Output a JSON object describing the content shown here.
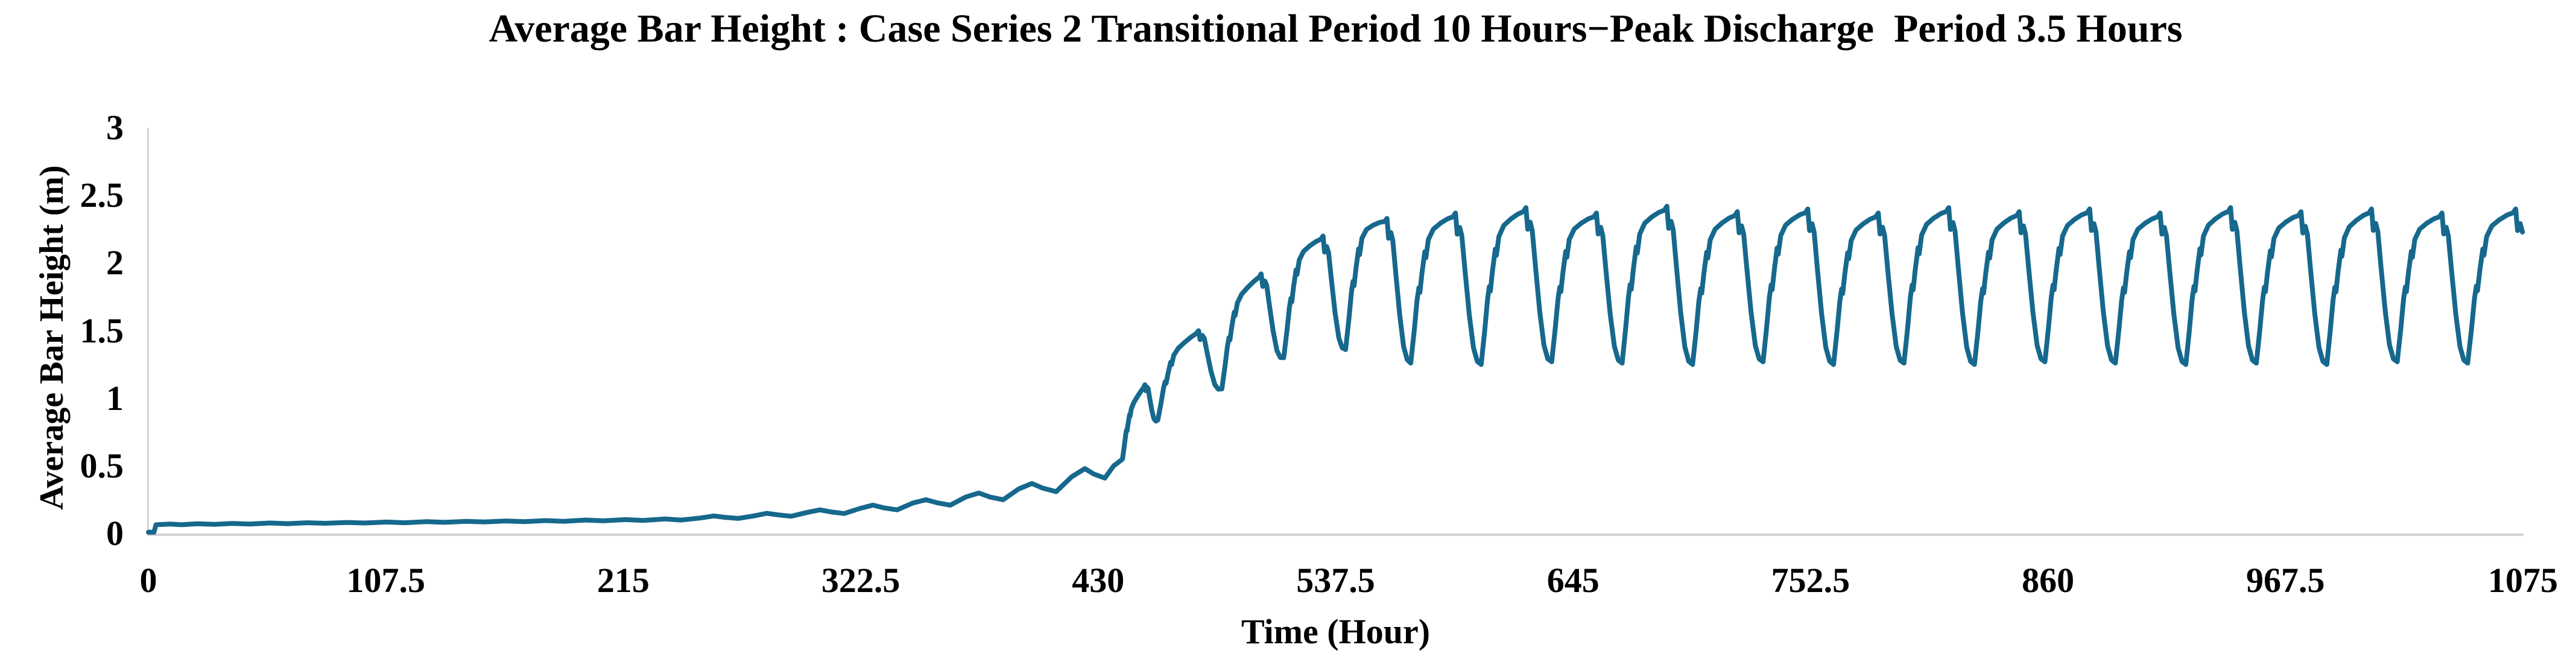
{
  "chart_data": {
    "type": "line",
    "title": "Average Bar Height : Case Series 2 Transitional Period 10 Hours−Peak Discharge  Period 3.5 Hours",
    "xlabel": "Time (Hour)",
    "ylabel": "Average Bar Height (m)",
    "xlim": [
      0,
      1075
    ],
    "ylim": [
      0,
      3
    ],
    "xticks": [
      0,
      107.5,
      215,
      322.5,
      430,
      537.5,
      645,
      752.5,
      860,
      967.5,
      1075
    ],
    "xtick_labels": [
      "0",
      "107.5",
      "215",
      "322.5",
      "430",
      "537.5",
      "645",
      "752.5",
      "860",
      "967.5",
      "1075"
    ],
    "yticks": [
      0,
      0.5,
      1,
      1.5,
      2,
      2.5,
      3
    ],
    "ytick_labels": [
      "0",
      "0.5",
      "1",
      "1.5",
      "2",
      "2.5",
      "3"
    ],
    "grid": false,
    "legend": "none",
    "line_color": "#16688D",
    "axis_color": "#D3D3D3",
    "description": "Average bar height stays near 0.07-0.12 m for ~250 hours, develops growing tidal-cycle oscillations through hour ~430, ramps up steeply between hours ~440-560, then oscillates in steady state between troughs of ~1.25 m and peaks of ~2.4 m with a period of ~32 hours until hour 1075.",
    "series": {
      "name": "average-bar-height",
      "pre_keypoints": [
        [
          0,
          0.01
        ],
        [
          2.5,
          0.01
        ],
        [
          3.5,
          0.065
        ],
        [
          10,
          0.07
        ],
        [
          15,
          0.065
        ],
        [
          22,
          0.072
        ],
        [
          30,
          0.068
        ],
        [
          38,
          0.075
        ],
        [
          46,
          0.07
        ],
        [
          55,
          0.078
        ],
        [
          63,
          0.073
        ],
        [
          72,
          0.08
        ],
        [
          80,
          0.076
        ],
        [
          90,
          0.082
        ],
        [
          98,
          0.078
        ],
        [
          108,
          0.085
        ],
        [
          116,
          0.08
        ],
        [
          126,
          0.088
        ],
        [
          134,
          0.083
        ],
        [
          144,
          0.09
        ],
        [
          152,
          0.086
        ],
        [
          162,
          0.093
        ],
        [
          170,
          0.088
        ],
        [
          180,
          0.096
        ],
        [
          188,
          0.09
        ],
        [
          198,
          0.1
        ],
        [
          206,
          0.094
        ],
        [
          216,
          0.103
        ],
        [
          224,
          0.097
        ],
        [
          234,
          0.108
        ],
        [
          241,
          0.1
        ],
        [
          250,
          0.115
        ],
        [
          256,
          0.13
        ],
        [
          261,
          0.12
        ],
        [
          267,
          0.112
        ],
        [
          274,
          0.13
        ],
        [
          280,
          0.15
        ],
        [
          285,
          0.138
        ],
        [
          291,
          0.128
        ],
        [
          298,
          0.155
        ],
        [
          304,
          0.175
        ],
        [
          309,
          0.16
        ],
        [
          315,
          0.148
        ],
        [
          322,
          0.185
        ],
        [
          328,
          0.21
        ],
        [
          333,
          0.19
        ],
        [
          339,
          0.175
        ],
        [
          346,
          0.225
        ],
        [
          352,
          0.25
        ],
        [
          357,
          0.228
        ],
        [
          363,
          0.21
        ],
        [
          370,
          0.27
        ],
        [
          376,
          0.3
        ],
        [
          381,
          0.27
        ],
        [
          387,
          0.25
        ],
        [
          394,
          0.33
        ],
        [
          400,
          0.37
        ],
        [
          405,
          0.335
        ],
        [
          411,
          0.31
        ],
        [
          418,
          0.42
        ],
        [
          424,
          0.48
        ],
        [
          428,
          0.44
        ],
        [
          433,
          0.41
        ],
        [
          437,
          0.5
        ],
        [
          441,
          0.55
        ]
      ],
      "cycle_template": {
        "peak_phase": 0.635,
        "points": [
          [
            0.0,
            0.0
          ],
          [
            0.05,
            0.22
          ],
          [
            0.09,
            0.42
          ],
          [
            0.115,
            0.5
          ],
          [
            0.13,
            0.47
          ],
          [
            0.16,
            0.6
          ],
          [
            0.2,
            0.74
          ],
          [
            0.215,
            0.7
          ],
          [
            0.25,
            0.82
          ],
          [
            0.32,
            0.89
          ],
          [
            0.42,
            0.93
          ],
          [
            0.52,
            0.96
          ],
          [
            0.6,
            0.975
          ],
          [
            0.635,
            1.0
          ],
          [
            0.66,
            0.86
          ],
          [
            0.695,
            0.905
          ],
          [
            0.725,
            0.85
          ],
          [
            0.77,
            0.62
          ],
          [
            0.83,
            0.33
          ],
          [
            0.89,
            0.11
          ],
          [
            0.945,
            0.02
          ],
          [
            1.0,
            0.0
          ]
        ]
      },
      "cycles": [
        [
          441,
          0.55,
          457,
          0.84,
          1.1
        ],
        [
          457,
          0.84,
          486,
          1.07,
          1.5
        ],
        [
          486,
          1.07,
          514,
          1.3,
          1.92
        ],
        [
          514,
          1.3,
          542,
          1.36,
          2.2
        ],
        [
          542,
          1.36,
          571.5,
          1.26,
          2.33
        ],
        [
          571.5,
          1.26,
          603.4,
          1.25,
          2.37
        ],
        [
          603.4,
          1.25,
          635.3,
          1.27,
          2.41
        ],
        [
          635.3,
          1.27,
          667.2,
          1.26,
          2.37
        ],
        [
          667.2,
          1.26,
          699.1,
          1.25,
          2.42
        ],
        [
          699.1,
          1.25,
          731.0,
          1.27,
          2.38
        ],
        [
          731.0,
          1.27,
          762.9,
          1.25,
          2.4
        ],
        [
          762.9,
          1.25,
          794.8,
          1.26,
          2.37
        ],
        [
          794.8,
          1.26,
          826.7,
          1.25,
          2.41
        ],
        [
          826.7,
          1.25,
          858.6,
          1.27,
          2.38
        ],
        [
          858.6,
          1.27,
          890.5,
          1.26,
          2.4
        ],
        [
          890.5,
          1.26,
          922.4,
          1.25,
          2.37
        ],
        [
          922.4,
          1.25,
          954.3,
          1.26,
          2.41
        ],
        [
          954.3,
          1.26,
          986.2,
          1.25,
          2.38
        ],
        [
          986.2,
          1.25,
          1018.1,
          1.27,
          2.4
        ],
        [
          1018.1,
          1.27,
          1050.0,
          1.26,
          2.37
        ],
        [
          1050.0,
          1.26,
          1084.2,
          1.26,
          2.4
        ]
      ]
    }
  }
}
